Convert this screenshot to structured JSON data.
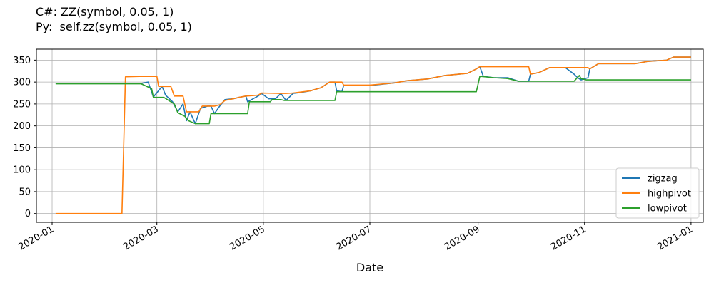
{
  "chart_data": {
    "type": "line",
    "title_lines": [
      "C#: ZZ(symbol, 0.05, 1)",
      "Py:  self.zz(symbol, 0.05, 1)"
    ],
    "xlabel": "Date",
    "ylabel": "",
    "xlim": [
      "2019-12-23",
      "2021-01-08"
    ],
    "ylim": [
      -20,
      375
    ],
    "yticks": [
      0,
      50,
      100,
      150,
      200,
      250,
      300,
      350
    ],
    "xticks": [
      {
        "date": "2020-01-01",
        "label": "2020-01"
      },
      {
        "date": "2020-03-01",
        "label": "2020-03"
      },
      {
        "date": "2020-05-01",
        "label": "2020-05"
      },
      {
        "date": "2020-07-01",
        "label": "2020-07"
      },
      {
        "date": "2020-09-01",
        "label": "2020-09"
      },
      {
        "date": "2020-11-01",
        "label": "2020-11"
      },
      {
        "date": "2021-01-01",
        "label": "2021-01"
      }
    ],
    "grid": true,
    "legend_position": "lower-right",
    "series": [
      {
        "name": "zigzag",
        "color": "#1f77b4",
        "points": [
          [
            "2020-01-03",
            297
          ],
          [
            "2020-02-11",
            297
          ],
          [
            "2020-02-21",
            297
          ],
          [
            "2020-02-25",
            300
          ],
          [
            "2020-02-28",
            266
          ],
          [
            "2020-03-04",
            290
          ],
          [
            "2020-03-06",
            270
          ],
          [
            "2020-03-10",
            255
          ],
          [
            "2020-03-13",
            232
          ],
          [
            "2020-03-16",
            250
          ],
          [
            "2020-03-18",
            212
          ],
          [
            "2020-03-20",
            232
          ],
          [
            "2020-03-23",
            205
          ],
          [
            "2020-03-26",
            240
          ],
          [
            "2020-03-30",
            245
          ],
          [
            "2020-04-01",
            245
          ],
          [
            "2020-04-03",
            228
          ],
          [
            "2020-04-06",
            245
          ],
          [
            "2020-04-09",
            260
          ],
          [
            "2020-04-14",
            262
          ],
          [
            "2020-04-17",
            265
          ],
          [
            "2020-04-21",
            268
          ],
          [
            "2020-04-22",
            255
          ],
          [
            "2020-04-28",
            268
          ],
          [
            "2020-04-30",
            274
          ],
          [
            "2020-05-04",
            262
          ],
          [
            "2020-05-08",
            262
          ],
          [
            "2020-05-11",
            274
          ],
          [
            "2020-05-14",
            258
          ],
          [
            "2020-05-18",
            274
          ],
          [
            "2020-05-22",
            276
          ],
          [
            "2020-05-28",
            280
          ],
          [
            "2020-06-03",
            287
          ],
          [
            "2020-06-08",
            300
          ],
          [
            "2020-06-11",
            300
          ],
          [
            "2020-06-12",
            280
          ],
          [
            "2020-06-15",
            278
          ],
          [
            "2020-06-16",
            292
          ],
          [
            "2020-07-01",
            292
          ],
          [
            "2020-07-15",
            298
          ],
          [
            "2020-07-22",
            303
          ],
          [
            "2020-08-03",
            307
          ],
          [
            "2020-08-13",
            315
          ],
          [
            "2020-08-26",
            320
          ],
          [
            "2020-08-31",
            330
          ],
          [
            "2020-09-02",
            335
          ],
          [
            "2020-09-04",
            313
          ],
          [
            "2020-09-10",
            310
          ],
          [
            "2020-09-18",
            310
          ],
          [
            "2020-09-24",
            302
          ],
          [
            "2020-09-30",
            302
          ],
          [
            "2020-10-01",
            318
          ],
          [
            "2020-10-06",
            322
          ],
          [
            "2020-10-12",
            333
          ],
          [
            "2020-10-21",
            333
          ],
          [
            "2020-10-26",
            318
          ],
          [
            "2020-10-28",
            310
          ],
          [
            "2020-10-30",
            305
          ],
          [
            "2020-11-03",
            310
          ],
          [
            "2020-11-04",
            330
          ],
          [
            "2020-11-09",
            342
          ],
          [
            "2020-11-30",
            342
          ],
          [
            "2020-12-07",
            347
          ],
          [
            "2020-12-18",
            350
          ],
          [
            "2020-12-22",
            357
          ],
          [
            "2021-01-01",
            357
          ]
        ]
      },
      {
        "name": "highpivot",
        "color": "#ff7f0e",
        "points": [
          [
            "2020-01-03",
            0
          ],
          [
            "2020-02-10",
            0
          ],
          [
            "2020-02-12",
            312
          ],
          [
            "2020-02-20",
            313
          ],
          [
            "2020-03-01",
            313
          ],
          [
            "2020-03-02",
            290
          ],
          [
            "2020-03-09",
            290
          ],
          [
            "2020-03-11",
            268
          ],
          [
            "2020-03-16",
            268
          ],
          [
            "2020-03-18",
            232
          ],
          [
            "2020-03-25",
            232
          ],
          [
            "2020-03-27",
            245
          ],
          [
            "2020-04-03",
            245
          ],
          [
            "2020-04-06",
            248
          ],
          [
            "2020-04-09",
            258
          ],
          [
            "2020-04-14",
            262
          ],
          [
            "2020-04-17",
            265
          ],
          [
            "2020-04-21",
            268
          ],
          [
            "2020-04-28",
            270
          ],
          [
            "2020-04-30",
            275
          ],
          [
            "2020-05-11",
            274
          ],
          [
            "2020-05-14",
            274
          ],
          [
            "2020-05-18",
            275
          ],
          [
            "2020-05-22",
            277
          ],
          [
            "2020-05-28",
            280
          ],
          [
            "2020-06-03",
            287
          ],
          [
            "2020-06-08",
            300
          ],
          [
            "2020-06-15",
            300
          ],
          [
            "2020-06-16",
            293
          ],
          [
            "2020-07-01",
            293
          ],
          [
            "2020-07-15",
            298
          ],
          [
            "2020-07-22",
            303
          ],
          [
            "2020-08-03",
            307
          ],
          [
            "2020-08-13",
            315
          ],
          [
            "2020-08-26",
            320
          ],
          [
            "2020-08-31",
            330
          ],
          [
            "2020-09-02",
            335
          ],
          [
            "2020-09-30",
            335
          ],
          [
            "2020-10-01",
            318
          ],
          [
            "2020-10-06",
            322
          ],
          [
            "2020-10-12",
            333
          ],
          [
            "2020-11-03",
            333
          ],
          [
            "2020-11-04",
            330
          ],
          [
            "2020-11-09",
            342
          ],
          [
            "2020-11-30",
            342
          ],
          [
            "2020-12-07",
            347
          ],
          [
            "2020-12-18",
            350
          ],
          [
            "2020-12-22",
            357
          ],
          [
            "2021-01-01",
            357
          ]
        ]
      },
      {
        "name": "lowpivot",
        "color": "#2ca02c",
        "points": [
          [
            "2020-01-03",
            296
          ],
          [
            "2020-02-21",
            296
          ],
          [
            "2020-02-27",
            285
          ],
          [
            "2020-02-28",
            265
          ],
          [
            "2020-03-05",
            265
          ],
          [
            "2020-03-09",
            255
          ],
          [
            "2020-03-11",
            250
          ],
          [
            "2020-03-13",
            230
          ],
          [
            "2020-03-17",
            222
          ],
          [
            "2020-03-19",
            212
          ],
          [
            "2020-03-23",
            205
          ],
          [
            "2020-03-31",
            205
          ],
          [
            "2020-04-01",
            228
          ],
          [
            "2020-04-22",
            228
          ],
          [
            "2020-04-23",
            255
          ],
          [
            "2020-04-28",
            255
          ],
          [
            "2020-05-05",
            255
          ],
          [
            "2020-05-06",
            260
          ],
          [
            "2020-05-11",
            260
          ],
          [
            "2020-05-13",
            258
          ],
          [
            "2020-06-11",
            258
          ],
          [
            "2020-06-12",
            278
          ],
          [
            "2020-08-31",
            278
          ],
          [
            "2020-09-02",
            313
          ],
          [
            "2020-09-10",
            310
          ],
          [
            "2020-09-18",
            308
          ],
          [
            "2020-09-24",
            302
          ],
          [
            "2020-10-26",
            302
          ],
          [
            "2020-10-29",
            315
          ],
          [
            "2020-10-30",
            308
          ],
          [
            "2020-11-02",
            305
          ],
          [
            "2021-01-01",
            305
          ]
        ]
      }
    ]
  }
}
